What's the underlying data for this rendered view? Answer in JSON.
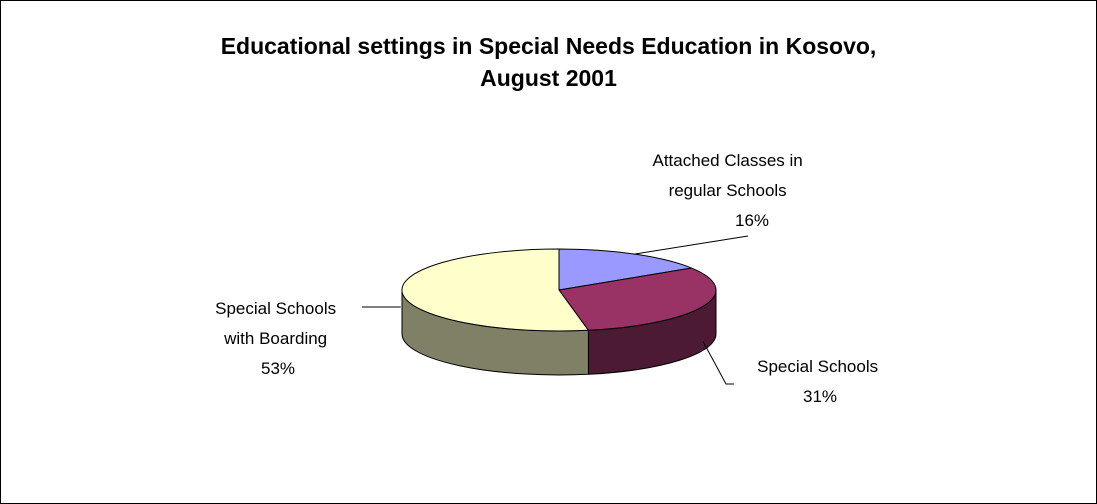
{
  "chart_data": {
    "type": "pie",
    "title_lines": [
      "Educational settings in Special Needs Education in Kosovo,",
      "August 2001"
    ],
    "slices": [
      {
        "label_lines": [
          "Attached Classes in",
          "regular Schools"
        ],
        "value": 16,
        "percent_label": "16%",
        "top_color": "#9999FF",
        "side_color": "#4D4D80"
      },
      {
        "label_lines": [
          "Special Schools"
        ],
        "value": 31,
        "percent_label": "31%",
        "top_color": "#993366",
        "side_color": "#4D1A33"
      },
      {
        "label_lines": [
          "Special Schools",
          "with Boarding"
        ],
        "value": 53,
        "percent_label": "53%",
        "top_color": "#FFFFCC",
        "side_color": "#808066"
      }
    ],
    "legend": "none",
    "style": "3d-pie"
  }
}
